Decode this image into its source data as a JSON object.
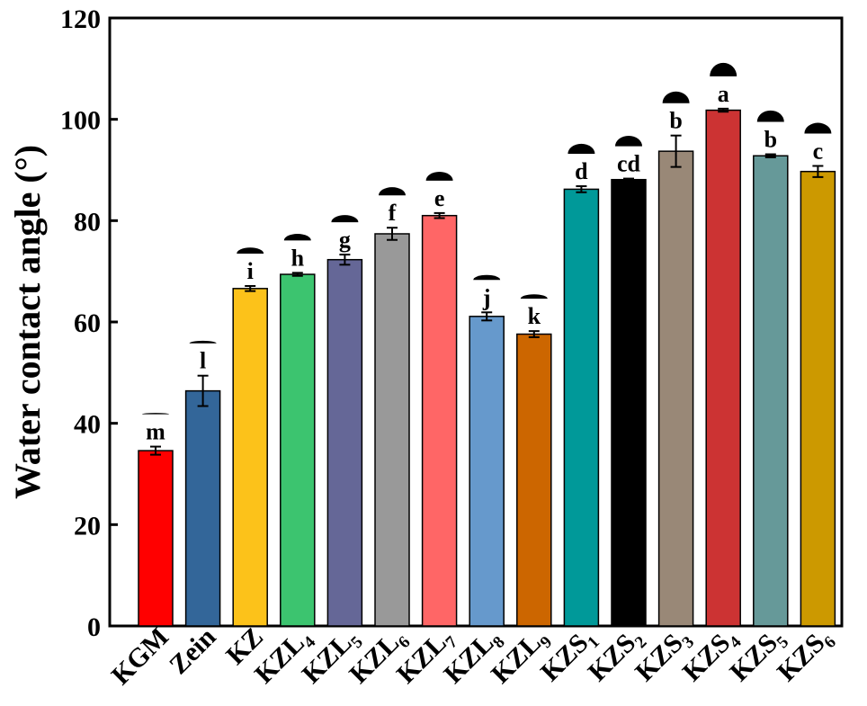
{
  "chart_data": {
    "type": "bar",
    "title": "",
    "xlabel": "",
    "ylabel": "Water contact angle (°)",
    "ylim": [
      0,
      120
    ],
    "yticks": [
      0,
      20,
      40,
      60,
      80,
      100,
      120
    ],
    "categories": [
      {
        "base": "KGM",
        "sub": ""
      },
      {
        "base": "Zein",
        "sub": ""
      },
      {
        "base": "KZ",
        "sub": ""
      },
      {
        "base": "KZL",
        "sub": "4"
      },
      {
        "base": "KZL",
        "sub": "5"
      },
      {
        "base": "KZL",
        "sub": "6"
      },
      {
        "base": "KZL",
        "sub": "7"
      },
      {
        "base": "KZL",
        "sub": "8"
      },
      {
        "base": "KZL",
        "sub": "9"
      },
      {
        "base": "KZS",
        "sub": "1"
      },
      {
        "base": "KZS",
        "sub": "2"
      },
      {
        "base": "KZS",
        "sub": "3"
      },
      {
        "base": "KZS",
        "sub": "4"
      },
      {
        "base": "KZS",
        "sub": "5"
      },
      {
        "base": "KZS",
        "sub": "6"
      }
    ],
    "values": [
      34.6,
      46.4,
      66.6,
      69.4,
      72.3,
      77.4,
      81.0,
      61.1,
      57.6,
      86.2,
      88.1,
      93.7,
      101.8,
      92.8,
      89.7
    ],
    "errors": [
      0.8,
      3.0,
      0.5,
      0.3,
      1.0,
      1.2,
      0.5,
      0.8,
      0.6,
      0.6,
      0.2,
      3.1,
      0.3,
      0.3,
      1.1
    ],
    "significance": [
      "m",
      "l",
      "i",
      "h",
      "g",
      "f",
      "e",
      "j",
      "k",
      "d",
      "cd",
      "b",
      "a",
      "b",
      "c"
    ],
    "colors": [
      "#ff0000",
      "#336699",
      "#fcc21a",
      "#3cc46f",
      "#656797",
      "#999999",
      "#ff6666",
      "#6699cc",
      "#cc6600",
      "#009999",
      "#000000",
      "#998877",
      "#cc3333",
      "#669999",
      "#cc9900"
    ],
    "droplet_icon": "water-droplet-icon",
    "legend": "none",
    "grid": false
  }
}
